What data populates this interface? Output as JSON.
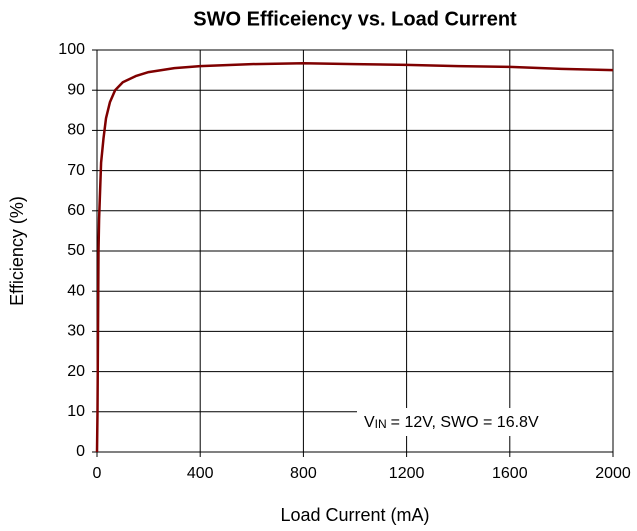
{
  "chart_data": {
    "type": "line",
    "title": "SWO Efficeiency vs. Load Current",
    "xlabel": "Load Current (mA)",
    "ylabel": "Efficiency (%)",
    "annotation": [
      "V",
      "IN",
      "= 12V, SWO = 16.8V"
    ],
    "x": [
      0,
      2,
      4,
      6,
      8,
      12,
      16,
      25,
      35,
      50,
      70,
      100,
      150,
      200,
      300,
      400,
      600,
      800,
      1000,
      1200,
      1400,
      1600,
      1800,
      2000
    ],
    "values": [
      0,
      10,
      30,
      50,
      58,
      65,
      72,
      78,
      83,
      87,
      90,
      92,
      93.5,
      94.5,
      95.5,
      96,
      96.5,
      96.7,
      96.5,
      96.3,
      96,
      95.8,
      95.3,
      95
    ],
    "color": "#7f0000",
    "xlim": [
      0,
      2000
    ],
    "xticks": [
      0,
      400,
      800,
      1200,
      1600,
      2000
    ],
    "ylim": [
      0,
      100
    ],
    "yticks": [
      0,
      10,
      20,
      30,
      40,
      50,
      60,
      70,
      80,
      90,
      100
    ],
    "grid": true
  }
}
